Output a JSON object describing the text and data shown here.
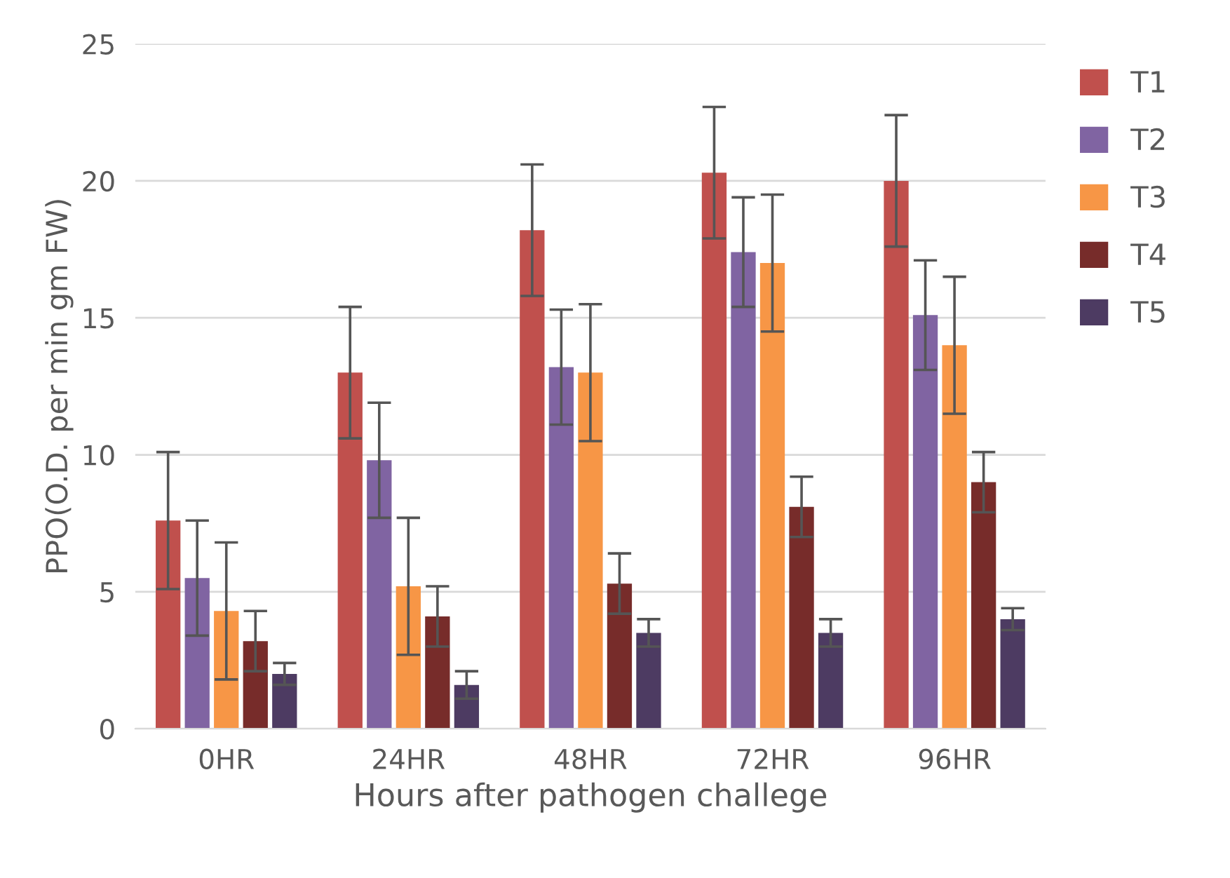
{
  "chart_data": {
    "type": "bar",
    "xlabel": "Hours after pathogen challege",
    "ylabel": "PPO(O.D. per min gm FW)",
    "categories": [
      "0HR",
      "24HR",
      "48HR",
      "72HR",
      "96HR"
    ],
    "series": [
      {
        "name": "T1",
        "color": "#c0504d",
        "values": [
          7.6,
          13.0,
          18.2,
          20.3,
          20.0
        ],
        "errors": [
          2.5,
          2.4,
          2.4,
          2.4,
          2.4
        ]
      },
      {
        "name": "T2",
        "color": "#8064a2",
        "values": [
          5.5,
          9.8,
          13.2,
          17.4,
          15.1
        ],
        "errors": [
          2.1,
          2.1,
          2.1,
          2.0,
          2.0
        ]
      },
      {
        "name": "T3",
        "color": "#f79646",
        "values": [
          4.3,
          5.2,
          13.0,
          17.0,
          14.0
        ],
        "errors": [
          2.5,
          2.5,
          2.5,
          2.5,
          2.5
        ]
      },
      {
        "name": "T4",
        "color": "#772c2a",
        "values": [
          3.2,
          4.1,
          5.3,
          8.1,
          9.0
        ],
        "errors": [
          1.1,
          1.1,
          1.1,
          1.1,
          1.1
        ]
      },
      {
        "name": "T5",
        "color": "#4d3b62",
        "values": [
          2.0,
          1.6,
          3.5,
          3.5,
          4.0
        ],
        "errors": [
          0.4,
          0.5,
          0.5,
          0.5,
          0.4
        ]
      }
    ],
    "ylim": [
      0,
      25
    ],
    "yticks": [
      0,
      5,
      10,
      15,
      20,
      25
    ],
    "grid": "y",
    "legend": "right"
  }
}
